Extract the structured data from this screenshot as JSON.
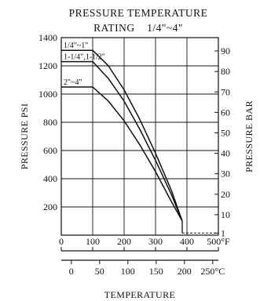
{
  "chart_data": {
    "type": "line",
    "title": "PRESSURE TEMPERATURE",
    "subtitle": "RATING    1/4\"~4\"",
    "ylabel": "PRESSURE PSI",
    "ylabel_right": "PRESSURE BAR",
    "xlabel": "TEMPERATURE",
    "xlim_f": [
      0,
      500
    ],
    "ylim_psi": [
      0,
      1400
    ],
    "grid": true,
    "x_ticks_f": [
      "0",
      "100",
      "200",
      "300",
      "400",
      "500°F"
    ],
    "x_ticks_c": [
      "0",
      "50",
      "100",
      "150",
      "200",
      "250°C"
    ],
    "y_ticks_psi": [
      "200",
      "400",
      "600",
      "800",
      "1000",
      "1200",
      "1400"
    ],
    "y_ticks_bar": [
      "1",
      "10",
      "20",
      "30",
      "40",
      "50",
      "60",
      "70",
      "80",
      "90"
    ],
    "series": [
      {
        "name": "1/4\"~1\"",
        "x": [
          0,
          100,
          150,
          200,
          250,
          300,
          350,
          385
        ],
        "y": [
          1310,
          1310,
          1200,
          1030,
          820,
          580,
          320,
          100
        ]
      },
      {
        "name": "1-1/4\",1-1/2\"",
        "x": [
          0,
          100,
          150,
          200,
          250,
          300,
          350,
          385
        ],
        "y": [
          1230,
          1230,
          1110,
          950,
          750,
          530,
          290,
          100
        ]
      },
      {
        "name": "2\"~4\"",
        "x": [
          0,
          100,
          150,
          200,
          250,
          300,
          350,
          385
        ],
        "y": [
          1050,
          1050,
          950,
          810,
          640,
          450,
          240,
          100
        ]
      }
    ],
    "dashed_line_psi": 15
  }
}
